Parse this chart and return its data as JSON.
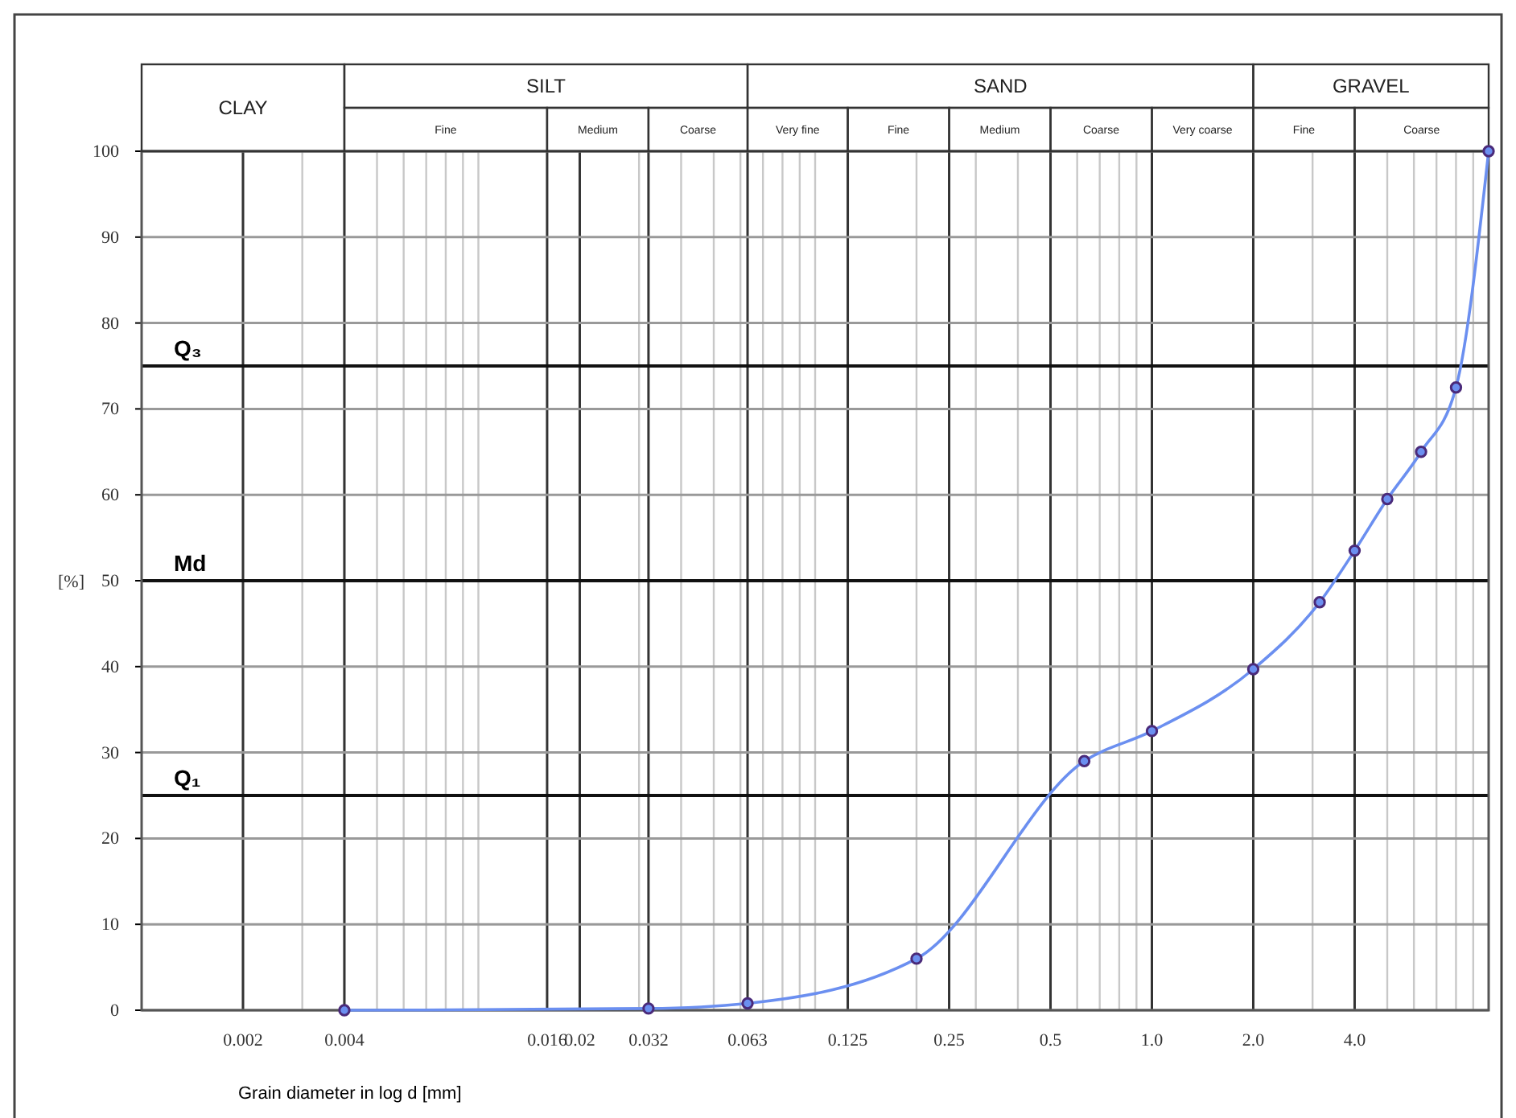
{
  "chart_data": {
    "type": "line",
    "xlabel": "Grain diameter in log d [mm]",
    "ylabel": "[%]",
    "log": "x",
    "x": [
      0.004,
      0.032,
      0.063,
      0.2,
      0.63,
      1.0,
      2.0,
      3.15,
      4.0,
      5.0,
      6.3,
      8.0,
      10
    ],
    "series": [
      {
        "color": "#6b8ff0",
        "values": [
          0,
          0.2,
          0.8,
          6,
          29,
          32.5,
          39.7,
          47.5,
          53.5,
          59.5,
          65,
          72.5,
          100
        ]
      }
    ],
    "marker": "circle",
    "line_style": "solid",
    "xlim": [
      0.001,
      10
    ],
    "xticks": [
      0.002,
      0.004,
      0.016,
      0.02,
      0.032,
      0.063,
      0.125,
      0.25,
      0.5,
      {
        "value": 1,
        "label": "1.0"
      },
      {
        "value": 2,
        "label": "2.0"
      },
      {
        "value": 4,
        "label": "4.0"
      }
    ],
    "ylim": [
      0,
      100
    ],
    "yticks": [
      0,
      10,
      20,
      30,
      40,
      50,
      60,
      70,
      80,
      90,
      100
    ],
    "grid": true,
    "ref_lines": [
      {
        "axis": "y",
        "value": 75,
        "label": "Q₃"
      },
      {
        "axis": "y",
        "value": 50,
        "label": "Md"
      },
      {
        "axis": "y",
        "value": 25,
        "label": "Q₁"
      }
    ],
    "annotations": [
      "CLAY",
      "SILT",
      "SAND",
      "GRAVEL",
      "Fine",
      "Medium",
      "Coarse",
      "Very fine",
      "Fine",
      "Medium",
      "Coarse",
      "Very coarse",
      "Fine",
      "Coarse"
    ]
  }
}
